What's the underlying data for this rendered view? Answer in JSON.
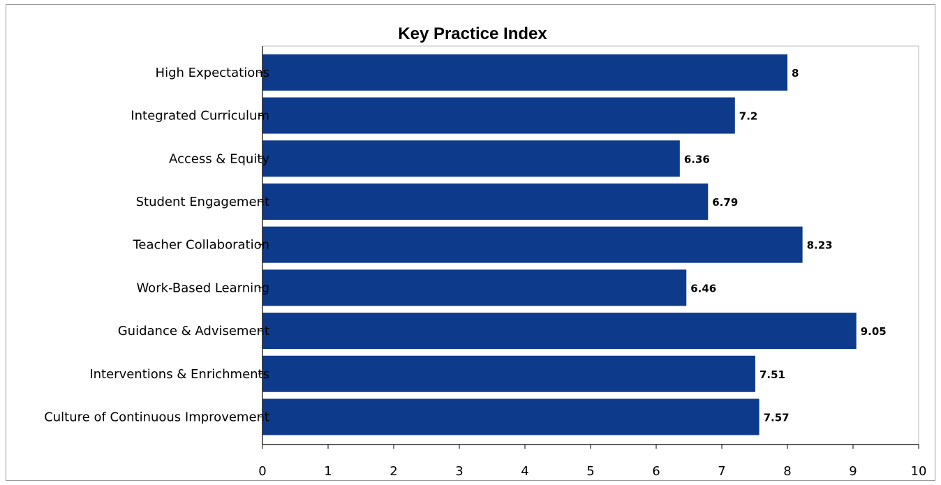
{
  "chart_data": {
    "type": "bar",
    "orientation": "horizontal",
    "title": "Key Practice Index",
    "categories": [
      "High Expectations",
      "Integrated Curriculum",
      "Access & Equity",
      "Student Engagement",
      "Teacher Collaboration",
      "Work-Based Learning",
      "Guidance & Advisement",
      "Interventions & Enrichments",
      "Culture of Continuous Improvement"
    ],
    "values": [
      8,
      7.2,
      6.36,
      6.79,
      8.23,
      6.46,
      9.05,
      7.51,
      7.57
    ],
    "data_labels": [
      "8",
      "7.2",
      "6.36",
      "6.79",
      "8.23",
      "6.46",
      "9.05",
      "7.51",
      "7.57"
    ],
    "xlim": [
      0,
      10
    ],
    "x_ticks": [
      "0",
      "1",
      "2",
      "3",
      "4",
      "5",
      "6",
      "7",
      "8",
      "9",
      "10"
    ],
    "grid": false,
    "bar_color": "#0E3A8C"
  }
}
